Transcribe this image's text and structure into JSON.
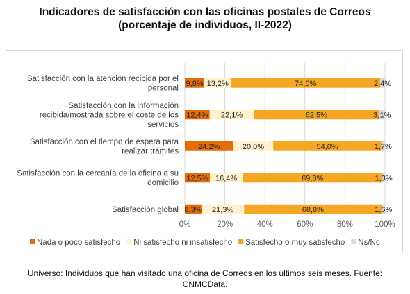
{
  "header": {
    "title_line1": "Indicadores de satisfacción con las oficinas postales de Correos",
    "title_line2": "(porcentaje de individuos, II-2022)"
  },
  "caption": {
    "line1": "Universo: Individuos que han visitado una oficina de Correos en los últimos seis meses. Fuente:",
    "line2": "CNMCData."
  },
  "chart_data": {
    "type": "bar",
    "orientation": "horizontal",
    "stacked": true,
    "percent_stacked": true,
    "categories": [
      [
        "Satisfacción con la atención recibida por el",
        "personal"
      ],
      [
        "Satisfacción con la información",
        "recibida/mostrada sobre el coste de los",
        "servicios"
      ],
      [
        "Satisfacción con el tiempo de espera para",
        "realizar trámites"
      ],
      [
        "Satisfacción con la cercanía de la oficina a su",
        "domicilio"
      ],
      [
        "Satisfacción global"
      ]
    ],
    "series": [
      {
        "name": "Nada o poco satisfecho",
        "color": "#e46c0a",
        "values": [
          9.8,
          12.4,
          24.2,
          12.5,
          8.3
        ],
        "labels": [
          "9,8%",
          "12,4%",
          "24,2%",
          "12,5%",
          "8,3%"
        ]
      },
      {
        "name": "Ni satisfecho ni insatisfecho",
        "color": "#fff2cc",
        "values": [
          13.2,
          22.1,
          20.0,
          16.4,
          21.3
        ],
        "labels": [
          "13,2%",
          "22,1%",
          "20,0%",
          "16,4%",
          "21,3%"
        ]
      },
      {
        "name": "Satisfecho o muy satisfecho",
        "color": "#f5a623",
        "values": [
          74.6,
          62.5,
          54.0,
          69.8,
          68.8
        ],
        "labels": [
          "74,6%",
          "62,5%",
          "54,0%",
          "69,8%",
          "68,8%"
        ]
      },
      {
        "name": "Ns/Nc",
        "color": "#d9d9d9",
        "values": [
          2.4,
          3.1,
          1.7,
          1.3,
          1.6
        ],
        "labels": [
          "2,4%",
          "3,1%",
          "1,7%",
          "1,3%",
          "1,6%"
        ]
      }
    ],
    "x_ticks": [
      "0%",
      "20%",
      "40%",
      "60%",
      "80%",
      "100%"
    ],
    "xlim": [
      0,
      100
    ],
    "grid": true,
    "legend_position": "bottom"
  }
}
